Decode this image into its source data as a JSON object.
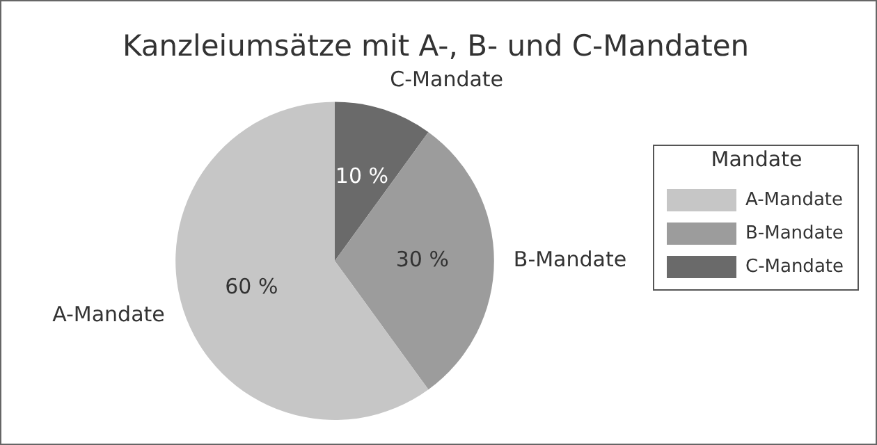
{
  "chart_data": {
    "type": "pie",
    "title": "Kanzleiumsätze mit A-, B- und C-Mandaten",
    "legend_title": "Mandate",
    "categories": [
      "A-Mandate",
      "B-Mandate",
      "C-Mandate"
    ],
    "values": [
      60,
      30,
      10
    ],
    "colors": [
      "#c6c6c6",
      "#9c9c9c",
      "#6a6a6a"
    ],
    "value_labels": [
      "60 %",
      "30 %",
      "10 %"
    ],
    "legend": "right"
  }
}
